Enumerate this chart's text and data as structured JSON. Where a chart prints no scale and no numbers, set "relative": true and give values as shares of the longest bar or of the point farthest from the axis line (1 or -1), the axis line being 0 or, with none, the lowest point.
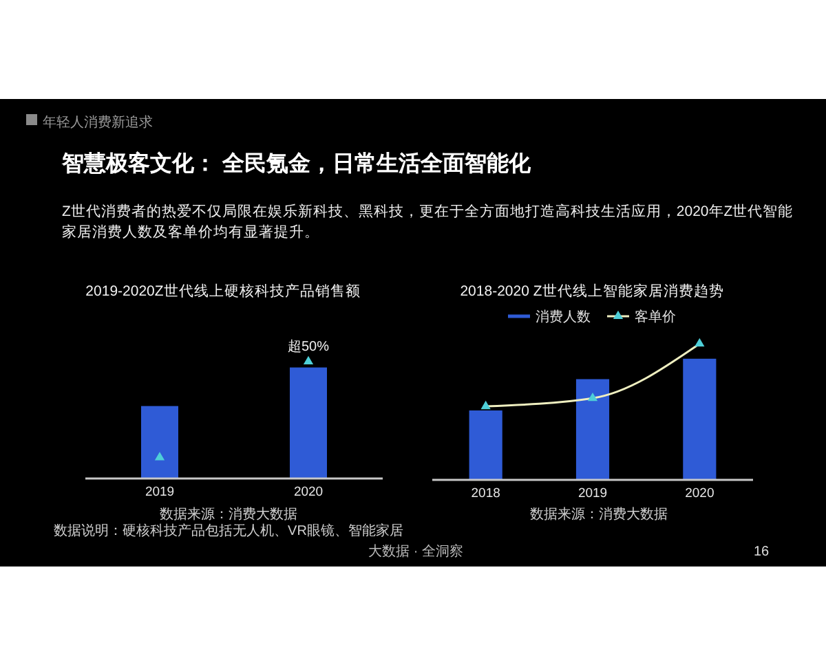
{
  "chart_data": [
    {
      "type": "other",
      "title": "智慧极客文化： 全民氪金，日常生活全面智能化",
      "subtitle": "Z世代消费者的热爱不仅局限在娱乐新科技、黑科技，更在于全方面地打造高科技生活应用，2020年Z世代智能家居消费人数及客单价均有显著提升。",
      "annotations": [
        "年轻人消费新追求",
        "大数据 · 全洞察",
        "16"
      ]
    },
    {
      "type": "bar",
      "title": "2019-2020Z世代线上硬核科技产品销售额",
      "categories": [
        "2019",
        "2020"
      ],
      "relative": true,
      "marker": "triangle",
      "series": [
        {
          "color": "#2f5bd6",
          "values": [
            0.62,
            0.95
          ]
        },
        {
          "type": "scatter",
          "color": "#4ecfd8",
          "values": [
            0.18,
            1.0
          ]
        }
      ],
      "annotations": [
        {
          "text": "超50%",
          "x": "2020",
          "y": 1.0
        },
        "数据来源：消费大数据",
        "数据说明：硬核科技产品包括无人机、VR眼镜、智能家居"
      ]
    },
    {
      "type": "bar",
      "title": "2018-2020 Z世代线上智能家居消费趋势",
      "categories": [
        "2018",
        "2019",
        "2020"
      ],
      "relative": true,
      "legend": "top",
      "marker": "triangle",
      "series": [
        {
          "name": "消费人数",
          "color": "#2f5bd6",
          "values": [
            0.51,
            0.74,
            0.89
          ]
        },
        {
          "name": "客单价",
          "type": "line",
          "color": "#efefc0",
          "colors": [
            "#4ecfd8",
            "#4ecfd8",
            "#4ecfd8"
          ],
          "values": [
            0.54,
            0.6,
            1.0
          ]
        }
      ],
      "annotations": [
        "数据来源：消费大数据"
      ]
    }
  ]
}
